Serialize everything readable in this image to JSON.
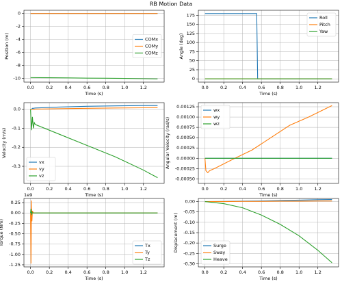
{
  "title": "RB Motion Data",
  "chart_data": [
    {
      "type": "line",
      "ylabel": "Position (m)",
      "xlabel": "Time (s)",
      "grid": true,
      "legend": "center right",
      "x": [
        0,
        0.2,
        0.4,
        0.6,
        0.8,
        1.0,
        1.2,
        1.35
      ],
      "series": [
        {
          "name": "COMx",
          "color": "#1f77b4",
          "values": [
            0,
            0,
            0,
            0,
            0,
            0,
            0,
            0
          ]
        },
        {
          "name": "COMy",
          "color": "#ff7f0e",
          "values": [
            0,
            0,
            0,
            0,
            0,
            0,
            0,
            0
          ]
        },
        {
          "name": "COMz",
          "color": "#2ca02c",
          "values": [
            -9.9,
            -9.92,
            -9.95,
            -9.98,
            -10.0,
            -10.03,
            -10.07,
            -10.1
          ]
        }
      ],
      "xlim": [
        -0.07,
        1.42
      ],
      "xticks": [
        {
          "value": 0,
          "label": "0.0"
        },
        0.2,
        0.4,
        0.6,
        0.8,
        {
          "value": 1,
          "label": "1.0"
        },
        1.2
      ],
      "ylim": [
        -10.6,
        0.5
      ],
      "yticks": [
        0,
        -2,
        -4,
        -6,
        -8,
        -10
      ]
    },
    {
      "type": "line",
      "ylabel": "Angle (deg)",
      "xlabel": "Time (s)",
      "grid": true,
      "legend": "upper right",
      "x": [
        0,
        0.2,
        0.4,
        0.55,
        0.56,
        0.8,
        1.0,
        1.2,
        1.35
      ],
      "series": [
        {
          "name": "Roll",
          "color": "#1f77b4",
          "values": [
            180,
            180,
            180,
            180,
            0,
            0,
            0,
            0,
            0
          ]
        },
        {
          "name": "Pitch",
          "color": "#ff7f0e",
          "values": [
            0,
            0,
            0,
            0,
            0,
            0,
            0,
            0,
            0
          ]
        },
        {
          "name": "Yaw",
          "color": "#2ca02c",
          "values": [
            0,
            0,
            0,
            0,
            0,
            0,
            0,
            0,
            0
          ]
        }
      ],
      "xlim": [
        -0.07,
        1.42
      ],
      "xticks": [
        {
          "value": 0,
          "label": "0.0"
        },
        0.2,
        0.4,
        0.6,
        0.8,
        {
          "value": 1,
          "label": "1.0"
        },
        1.2
      ],
      "ylim": [
        -9,
        189
      ],
      "yticks": [
        0,
        25,
        50,
        75,
        100,
        125,
        150,
        175
      ]
    },
    {
      "type": "line",
      "ylabel": "Velocity (m/s)",
      "xlabel": "Time (s)",
      "grid": true,
      "legend": "lower left",
      "x": [
        0,
        0.01,
        0.02,
        0.03,
        0.04,
        0.05,
        0.3,
        0.6,
        0.9,
        1.2,
        1.35
      ],
      "series": [
        {
          "name": "vx",
          "color": "#1f77b4",
          "values": [
            0,
            0,
            0.005,
            0.005,
            0.006,
            0.007,
            0.012,
            0.016,
            0.018,
            0.02,
            0.02
          ]
        },
        {
          "name": "vy",
          "color": "#ff7f0e",
          "values": [
            0,
            0,
            0,
            0,
            0,
            0.001,
            0.003,
            0.005,
            0.007,
            0.008,
            0.009
          ]
        },
        {
          "name": "vz",
          "color": "#2ca02c",
          "values": [
            0,
            -0.11,
            -0.04,
            -0.1,
            -0.07,
            -0.08,
            -0.13,
            -0.19,
            -0.25,
            -0.32,
            -0.36
          ]
        }
      ],
      "xlim": [
        -0.07,
        1.42
      ],
      "xticks": [
        {
          "value": 0,
          "label": "0.0"
        },
        0.2,
        0.4,
        0.6,
        0.8,
        {
          "value": 1,
          "label": "1.0"
        },
        1.2
      ],
      "ylim": [
        -0.39,
        0.035
      ],
      "yticks": [
        {
          "value": 0,
          "label": "0.0"
        },
        -0.1,
        -0.2,
        -0.3
      ]
    },
    {
      "type": "line",
      "ylabel": "Angular Velocity (rad/s)",
      "xlabel": "Time (s)",
      "grid": true,
      "legend": "upper left",
      "x": [
        0,
        0.01,
        0.03,
        0.05,
        0.1,
        0.3,
        0.5,
        0.7,
        0.9,
        1.1,
        1.35
      ],
      "series": [
        {
          "name": "wx",
          "color": "#1f77b4",
          "values": [
            0,
            0,
            0,
            0,
            0,
            0,
            0,
            0,
            0,
            0,
            0
          ]
        },
        {
          "name": "wy",
          "color": "#ff7f0e",
          "values": [
            0,
            -0.0003,
            -0.00035,
            -0.0003,
            -0.00025,
            -2e-05,
            0.0002,
            0.0005,
            0.0008,
            0.001,
            0.00128
          ]
        },
        {
          "name": "wz",
          "color": "#2ca02c",
          "values": [
            0,
            0,
            0,
            0,
            0,
            0,
            0,
            0,
            0,
            0,
            0
          ]
        }
      ],
      "xlim": [
        -0.07,
        1.42
      ],
      "xticks": [
        {
          "value": 0,
          "label": "0.0"
        },
        0.2,
        0.4,
        0.6,
        0.8,
        {
          "value": 1,
          "label": "1.0"
        },
        1.2
      ],
      "ylim": [
        -0.00061,
        0.00135
      ],
      "yticks": [
        {
          "value": -0.0005,
          "label": "-0.00050"
        },
        {
          "value": -0.00025,
          "label": "-0.00025"
        },
        {
          "value": 0,
          "label": "0.00000"
        },
        {
          "value": 0.00025,
          "label": "0.00025"
        },
        {
          "value": 0.0005,
          "label": "0.00050"
        },
        {
          "value": 0.00075,
          "label": "0.00075"
        },
        {
          "value": 0.001,
          "label": "0.00100"
        },
        {
          "value": 0.00125,
          "label": "0.00125"
        }
      ]
    },
    {
      "type": "line",
      "ylabel": "Torque (Nm)",
      "xlabel": "Time (s)",
      "grid": true,
      "legend": "lower right",
      "offset_label": "1e9",
      "x": [
        0,
        0.005,
        0.01,
        0.015,
        0.02,
        0.03,
        0.05,
        0.5,
        1.0,
        1.35
      ],
      "series": [
        {
          "name": "Tx",
          "color": "#1f77b4",
          "values": [
            0,
            0,
            0,
            0,
            0,
            0,
            0,
            0,
            0,
            0
          ]
        },
        {
          "name": "Ty",
          "color": "#ff7f0e",
          "values": [
            0,
            -1220000000,
            300000000,
            -200000000,
            50000000,
            0,
            0,
            0,
            0,
            0
          ]
        },
        {
          "name": "Tz",
          "color": "#2ca02c",
          "values": [
            0,
            100000000,
            -50000000,
            20000000,
            0,
            0,
            0,
            0,
            0,
            0
          ]
        }
      ],
      "xlim": [
        -0.07,
        1.42
      ],
      "xticks": [
        {
          "value": 0,
          "label": "0.0"
        },
        0.2,
        0.4,
        0.6,
        0.8,
        {
          "value": 1,
          "label": "1.0"
        },
        1.2
      ],
      "ylim": [
        -1300000000,
        350000000
      ],
      "yticks": [
        {
          "value": 250000000,
          "label": "0.25"
        },
        {
          "value": 0,
          "label": "0.00"
        },
        {
          "value": -250000000,
          "label": "-0.25"
        },
        {
          "value": -500000000,
          "label": "-0.50"
        },
        {
          "value": -750000000,
          "label": "-0.75"
        },
        {
          "value": -1000000000,
          "label": "-1.00"
        },
        {
          "value": -1250000000,
          "label": "-1.25"
        }
      ]
    },
    {
      "type": "line",
      "ylabel": "Displacement (m)",
      "xlabel": "Time (s)",
      "grid": true,
      "legend": "lower left",
      "x": [
        0,
        0.2,
        0.4,
        0.6,
        0.8,
        1.0,
        1.2,
        1.35
      ],
      "series": [
        {
          "name": "Surge",
          "color": "#1f77b4",
          "values": [
            0,
            0.001,
            0.002,
            0.003,
            0.005,
            0.007,
            0.009,
            0.01
          ]
        },
        {
          "name": "Sway",
          "color": "#ff7f0e",
          "values": [
            0,
            0,
            0.001,
            0.001,
            0.002,
            0.002,
            0.003,
            0.003
          ]
        },
        {
          "name": "Heave",
          "color": "#2ca02c",
          "values": [
            0,
            -0.01,
            -0.03,
            -0.065,
            -0.11,
            -0.165,
            -0.235,
            -0.295
          ]
        }
      ],
      "xlim": [
        -0.07,
        1.42
      ],
      "xticks": [
        {
          "value": 0,
          "label": "0.0"
        },
        0.2,
        0.4,
        0.6,
        0.8,
        {
          "value": 1,
          "label": "1.0"
        },
        1.2
      ],
      "ylim": [
        -0.315,
        0.015
      ],
      "yticks": [
        {
          "value": 0,
          "label": "0.00"
        },
        -0.05,
        {
          "value": -0.1,
          "label": "-0.10"
        },
        -0.15,
        {
          "value": -0.2,
          "label": "-0.20"
        },
        -0.25,
        {
          "value": -0.3,
          "label": "-0.30"
        }
      ]
    }
  ]
}
